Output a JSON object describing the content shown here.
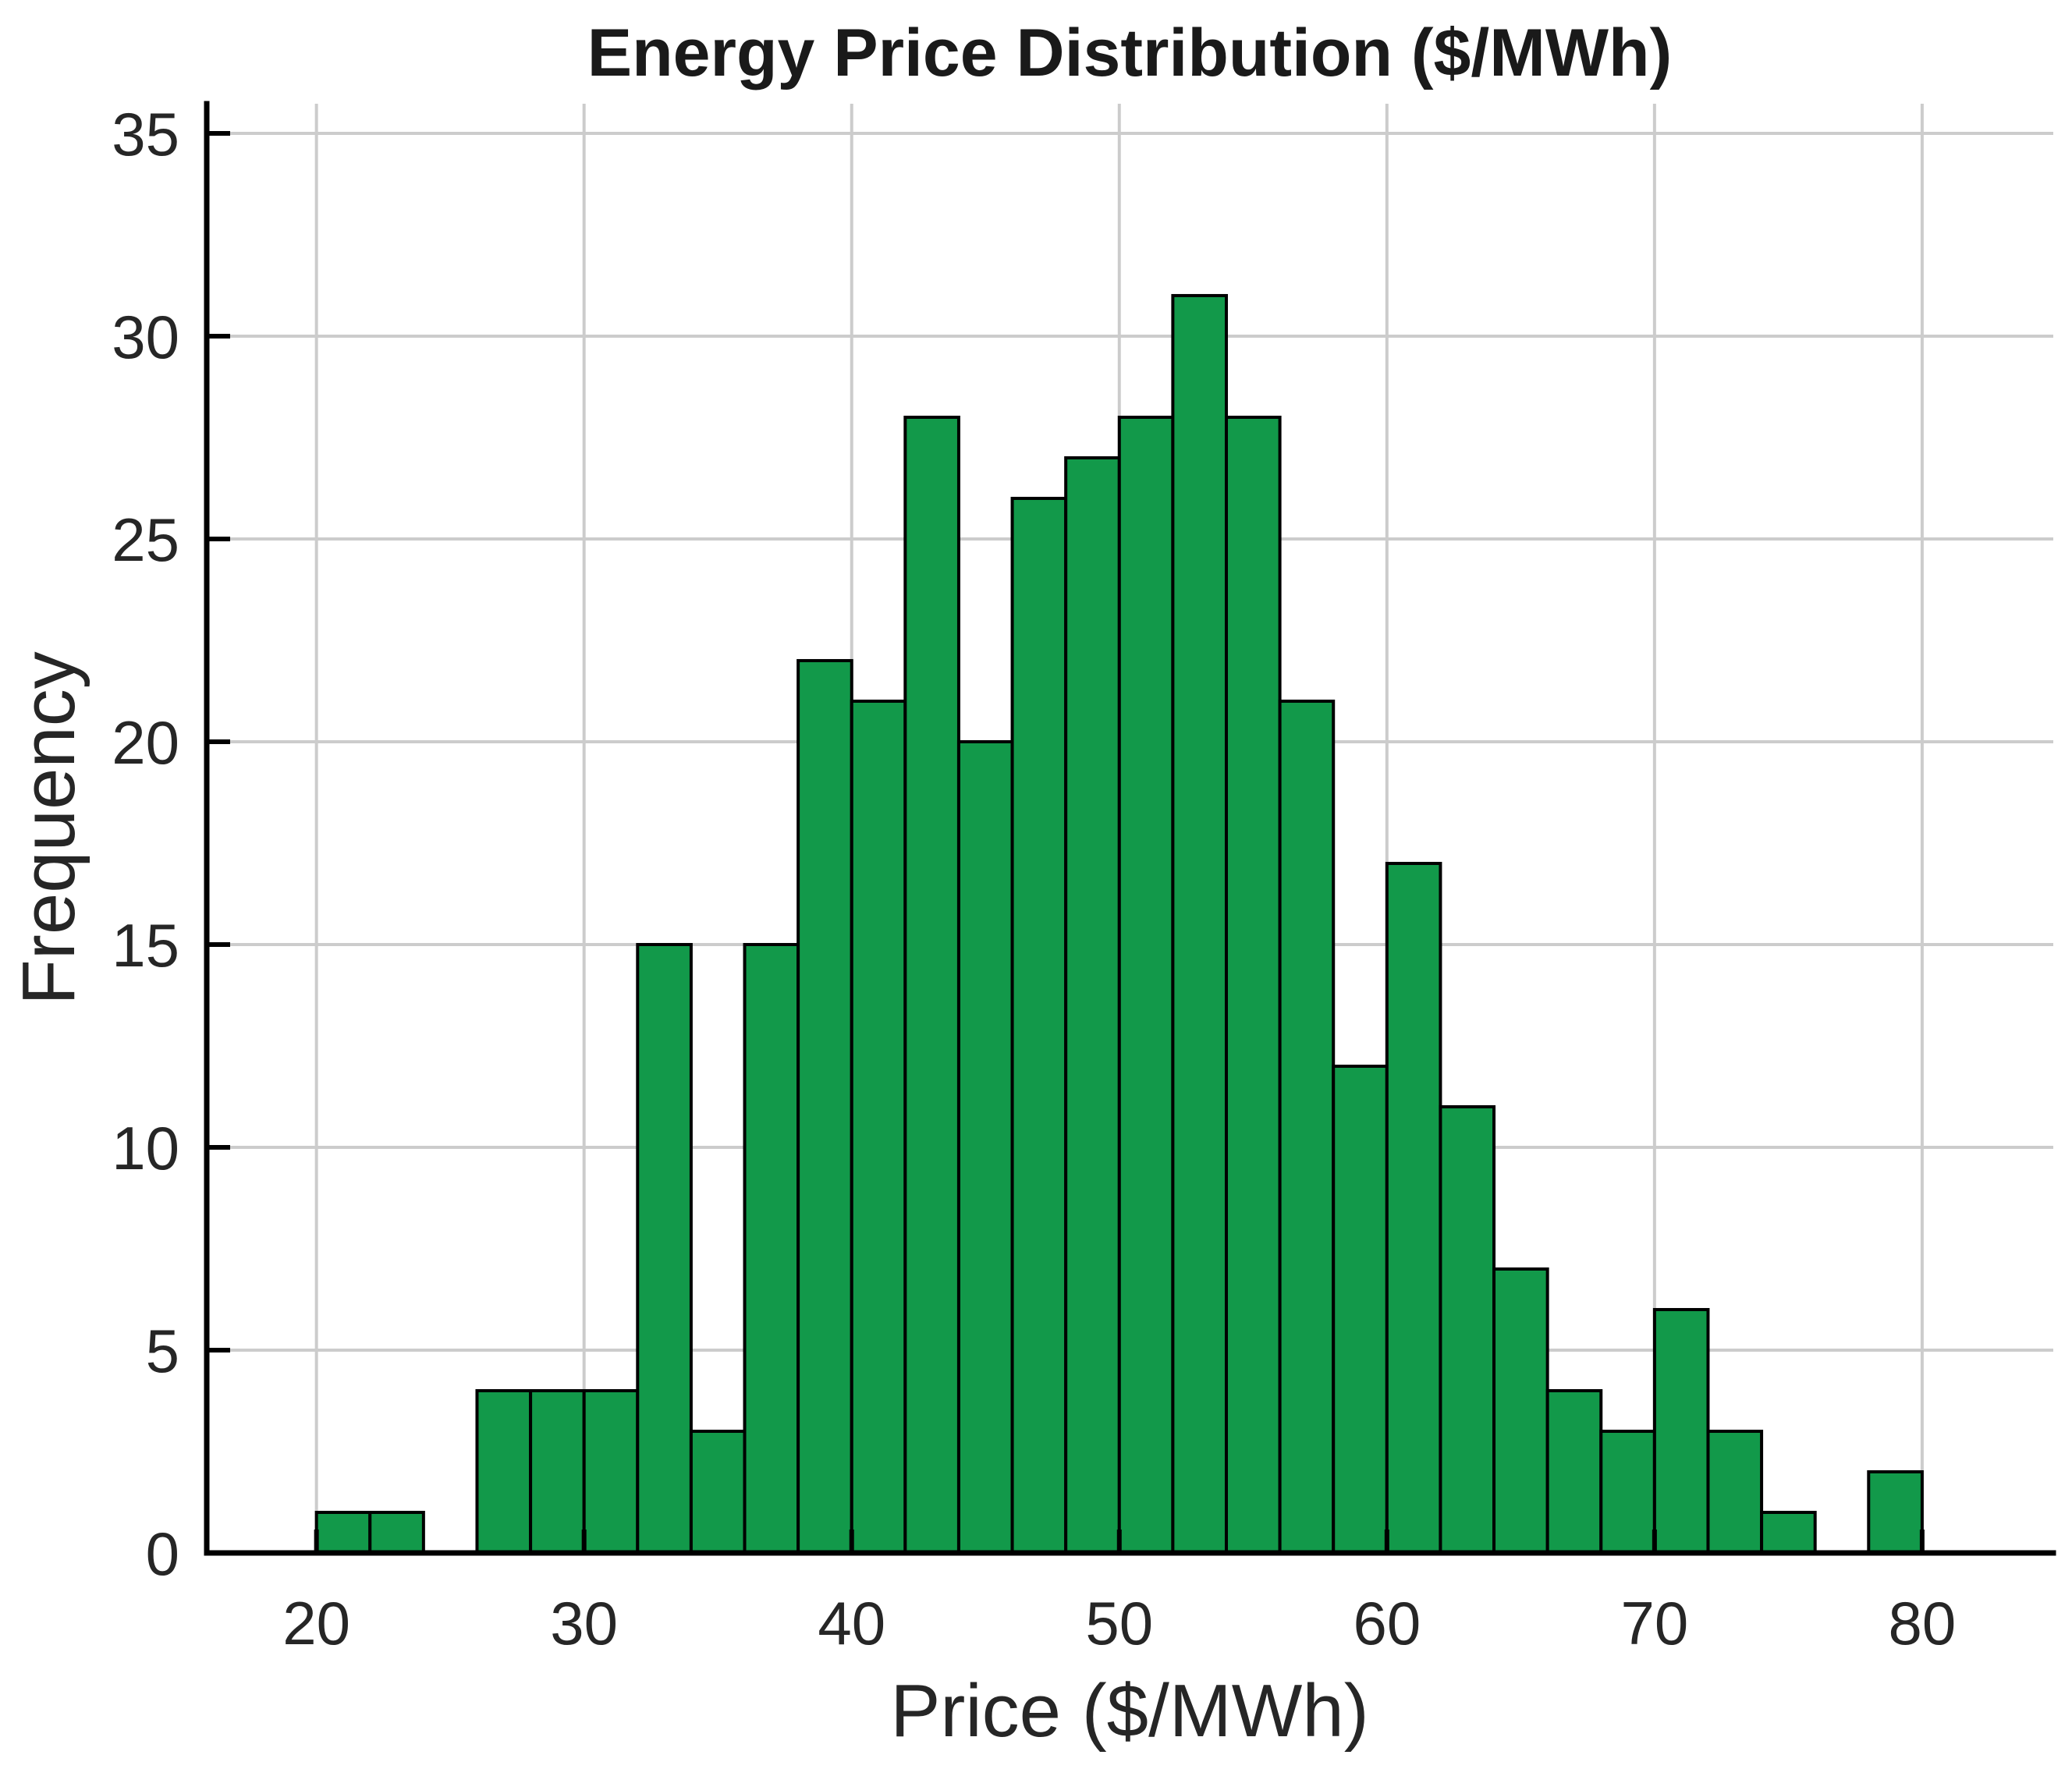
{
  "chart_data": {
    "type": "bar",
    "subtype": "histogram",
    "title": "Energy Price Distribution ($/MWh)",
    "xlabel": "Price ($/MWh)",
    "ylabel": "Frequency",
    "bin_edges": [
      20,
      22,
      24,
      26,
      28,
      30,
      32,
      34,
      36,
      38,
      40,
      42,
      44,
      46,
      48,
      50,
      52,
      54,
      56,
      58,
      60,
      62,
      64,
      66,
      68,
      70,
      72,
      74,
      76,
      78,
      80
    ],
    "counts": [
      1,
      1,
      0,
      4,
      4,
      4,
      15,
      3,
      15,
      22,
      21,
      28,
      20,
      26,
      27,
      28,
      31,
      28,
      21,
      12,
      17,
      11,
      7,
      4,
      3,
      6,
      3,
      1,
      0,
      2
    ],
    "x_ticks": [
      20,
      30,
      40,
      50,
      60,
      70,
      80
    ],
    "y_ticks": [
      0,
      5,
      10,
      15,
      20,
      25,
      30,
      35
    ],
    "xlim": [
      15.9,
      84.9
    ],
    "ylim": [
      0,
      35.73
    ],
    "grid": true,
    "legend_position": "none",
    "colors": {
      "bar_fill": "#12994A",
      "bar_edge": "#000000",
      "grid": "#CCCCCC",
      "axis": "#000000",
      "tick_label": "#262626",
      "axis_label": "#262626",
      "title": "#1A1A1A",
      "background": "#FFFFFF"
    }
  }
}
